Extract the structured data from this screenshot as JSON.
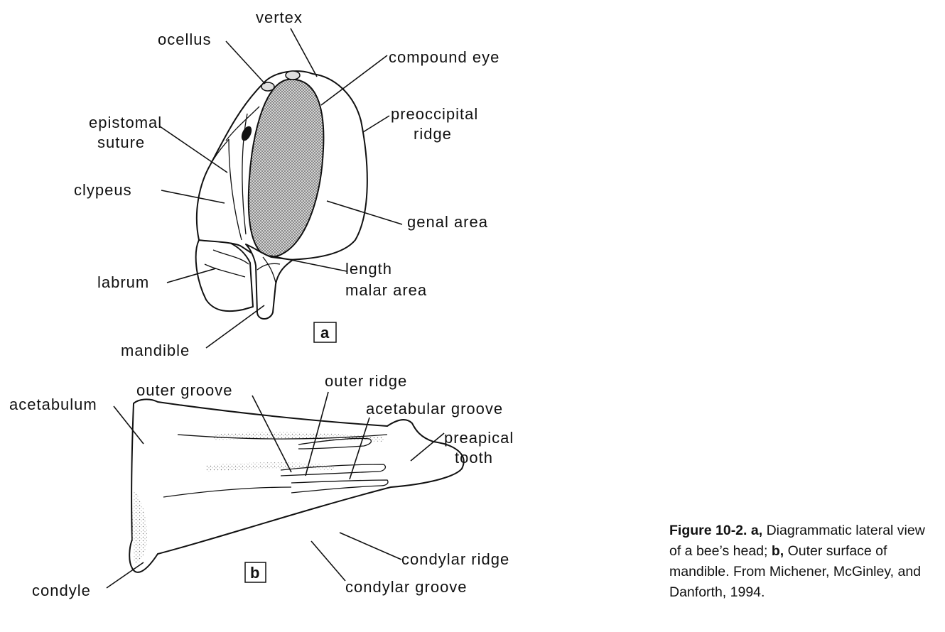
{
  "panel_a": {
    "tag": "a",
    "labels": {
      "vertex": "vertex",
      "ocellus": "ocellus",
      "compound_eye": "compound eye",
      "epistomal_1": "epistomal",
      "epistomal_2": "suture",
      "preoccipital_1": "preoccipital",
      "preoccipital_2": "ridge",
      "clypeus": "clypeus",
      "genal_area": "genal area",
      "labrum": "labrum",
      "length": "length",
      "malar_area": "malar area",
      "mandible": "mandible"
    }
  },
  "panel_b": {
    "tag": "b",
    "labels": {
      "acetabulum": "acetabulum",
      "outer_groove": "outer groove",
      "outer_ridge": "outer ridge",
      "acetabular_groove": "acetabular groove",
      "preapical_1": "preapical",
      "preapical_2": "tooth",
      "condylar_ridge": "condylar ridge",
      "condyle": "condyle",
      "condylar_groove": "condylar groove"
    }
  },
  "caption": {
    "fig_label": "Figure 10-2.",
    "a_tag": "a,",
    "a_text": "Diagrammatic lateral view of a bee’s head;",
    "b_tag": "b,",
    "b_text": "Outer surface of mandible. From Michener, McGinley, and Danforth, 1994."
  }
}
